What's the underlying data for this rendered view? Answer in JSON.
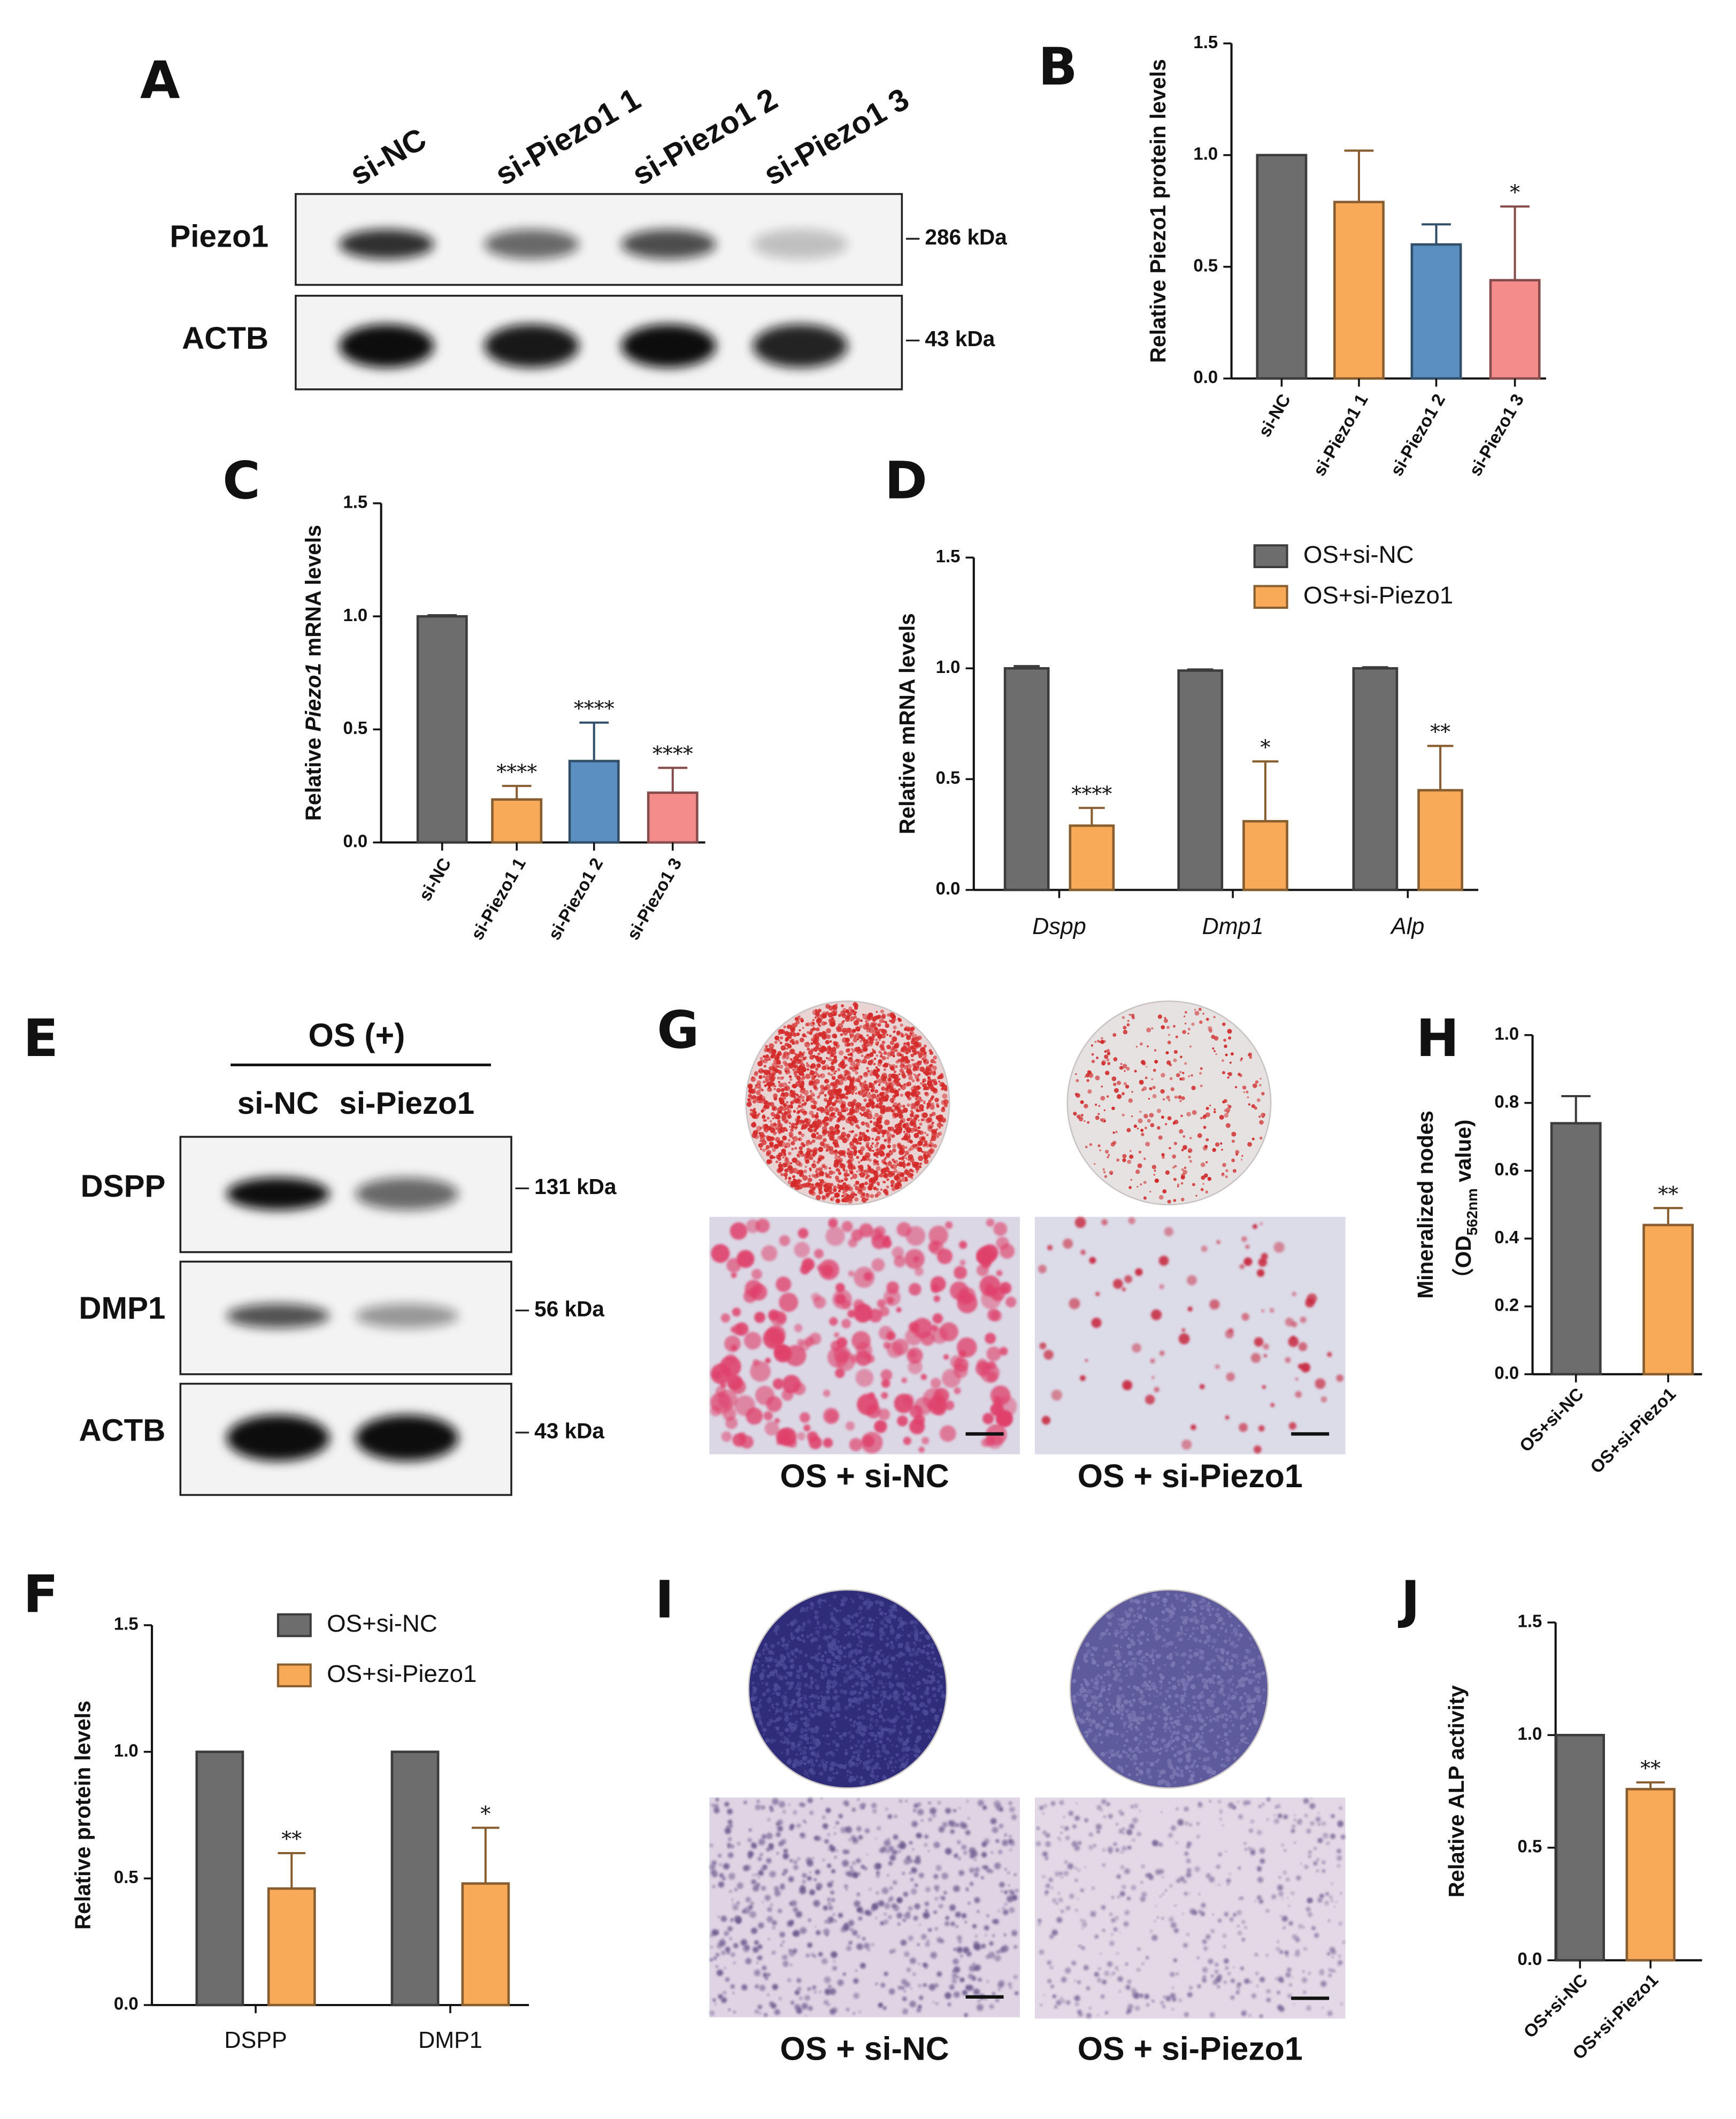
{
  "chart_data": [
    {
      "type": "bar",
      "panel_label": "B",
      "ylabel": [
        [
          {
            "text": "Relative Piezo1 protein levels"
          }
        ]
      ],
      "categories": [
        "si-NC",
        "si-Piezo1 1",
        "si-Piezo1 2",
        "si-Piezo1 3"
      ],
      "values": [
        1,
        0.79,
        0.6,
        0.44
      ],
      "errors": [
        null,
        0.23,
        0.09,
        0.33
      ],
      "stars": [
        null,
        null,
        null,
        "*"
      ],
      "colors": [
        "#6d6d6d",
        "#f8aa58",
        "#5b8fc1",
        "#f58c8c"
      ],
      "ylim": [
        0,
        1.5
      ],
      "yticks": [
        {
          "value": 0,
          "label": "0.0"
        },
        0.5,
        {
          "value": 1,
          "label": "1.0"
        },
        1.5
      ]
    },
    {
      "type": "bar",
      "panel_label": "C",
      "ylabel": [
        [
          {
            "text": "Relative "
          },
          {
            "text": "Piezo1",
            "italic": true
          },
          {
            "text": " mRNA levels"
          }
        ]
      ],
      "categories": [
        "si-NC",
        "si-Piezo1 1",
        "si-Piezo1 2",
        "si-Piezo1 3"
      ],
      "values": [
        1,
        0.19,
        0.36,
        0.22
      ],
      "errors": [
        0.005,
        0.06,
        0.17,
        0.11
      ],
      "stars": [
        null,
        "****",
        "****",
        "****"
      ],
      "colors": [
        "#6d6d6d",
        "#f8aa58",
        "#5b8fc1",
        "#f58c8c"
      ],
      "ylim": [
        0,
        1.5
      ],
      "yticks": [
        {
          "value": 0,
          "label": "0.0"
        },
        0.5,
        {
          "value": 1,
          "label": "1.0"
        },
        1.5
      ]
    },
    {
      "type": "bar",
      "panel_label": "D",
      "ylabel": [
        [
          {
            "text": "Relative mRNA levels"
          }
        ]
      ],
      "categories": [
        "Dspp",
        "Dmp1",
        "Alp"
      ],
      "category_style": "italic",
      "legend": true,
      "series": [
        {
          "name": "OS+si-NC",
          "color": "#6d6d6d",
          "values": [
            1,
            0.99,
            1
          ],
          "errors": [
            0.01,
            0.005,
            0.005
          ]
        },
        {
          "name": "OS+si-Piezo1",
          "color": "#f8aa58",
          "values": [
            0.29,
            0.31,
            0.45
          ],
          "errors": [
            0.08,
            0.27,
            0.2
          ],
          "stars": [
            "****",
            "*",
            "**"
          ]
        }
      ],
      "ylim": [
        0,
        1.5
      ],
      "yticks": [
        {
          "value": 0,
          "label": "0.0"
        },
        0.5,
        {
          "value": 1,
          "label": "1.0"
        },
        1.5
      ]
    },
    {
      "type": "bar",
      "panel_label": "F",
      "ylabel": [
        [
          {
            "text": "Relative protein levels"
          }
        ]
      ],
      "categories": [
        "DSPP",
        "DMP1"
      ],
      "legend": true,
      "series": [
        {
          "name": "OS+si-NC",
          "color": "#6d6d6d",
          "values": [
            1,
            1
          ],
          "errors": [
            null,
            null
          ]
        },
        {
          "name": "OS+si-Piezo1",
          "color": "#f8aa58",
          "values": [
            0.46,
            0.48
          ],
          "errors": [
            0.14,
            0.22
          ],
          "stars": [
            "**",
            "*"
          ]
        }
      ],
      "ylim": [
        0,
        1.5
      ],
      "yticks": [
        {
          "value": 0,
          "label": "0.0"
        },
        0.5,
        {
          "value": 1,
          "label": "1.0"
        },
        1.5
      ]
    },
    {
      "type": "bar",
      "panel_label": "H",
      "ylabel": [
        [
          {
            "text": "Mineralized nodes"
          }
        ],
        [
          {
            "text": "（OD"
          },
          {
            "text": "562nm",
            "sub": true
          },
          {
            "text": " value)"
          }
        ]
      ],
      "categories": [
        "OS+si-NC",
        "OS+si-Piezo1"
      ],
      "values": [
        0.74,
        0.44
      ],
      "errors": [
        0.08,
        0.05
      ],
      "stars": [
        null,
        "**"
      ],
      "colors": [
        "#6d6d6d",
        "#f8aa58"
      ],
      "ylim": [
        0,
        1
      ],
      "yticks": [
        {
          "value": 0,
          "label": "0.0"
        },
        0.2,
        0.4,
        0.6,
        0.8,
        {
          "value": 1,
          "label": "1.0"
        }
      ]
    },
    {
      "type": "bar",
      "panel_label": "J",
      "ylabel": [
        [
          {
            "text": "Relative ALP activity"
          }
        ]
      ],
      "categories": [
        "OS+si-NC",
        "OS+si-Piezo1"
      ],
      "values": [
        1,
        0.76
      ],
      "errors": [
        null,
        0.03
      ],
      "stars": [
        null,
        "**"
      ],
      "colors": [
        "#6d6d6d",
        "#f8aa58"
      ],
      "ylim": [
        0,
        1.5
      ],
      "yticks": [
        {
          "value": 0,
          "label": "0.0"
        },
        0.5,
        {
          "value": 1,
          "label": "1.0"
        },
        1.5
      ]
    }
  ],
  "blots": [
    {
      "panel_label": "A",
      "lanes": [
        "si-NC",
        "si-Piezo1 1",
        "si-Piezo1 2",
        "si-Piezo1 3"
      ],
      "rows": [
        {
          "name": "Piezo1",
          "size": "286 kDa"
        },
        {
          "name": "ACTB",
          "size": "43 kDa"
        }
      ]
    },
    {
      "panel_label": "E",
      "header": "OS (+)",
      "lanes": [
        "si-NC",
        "si-Piezo1"
      ],
      "rows": [
        {
          "name": "DSPP",
          "size": "131 kDa"
        },
        {
          "name": "DMP1",
          "size": "56 kDa"
        },
        {
          "name": "ACTB",
          "size": "43 kDa"
        }
      ]
    }
  ],
  "images": [
    {
      "panel_label": "G",
      "labels": [
        "OS + si-NC",
        "OS + si-Piezo1"
      ]
    },
    {
      "panel_label": "I",
      "labels": [
        "OS + si-NC",
        "OS + si-Piezo1"
      ]
    }
  ]
}
